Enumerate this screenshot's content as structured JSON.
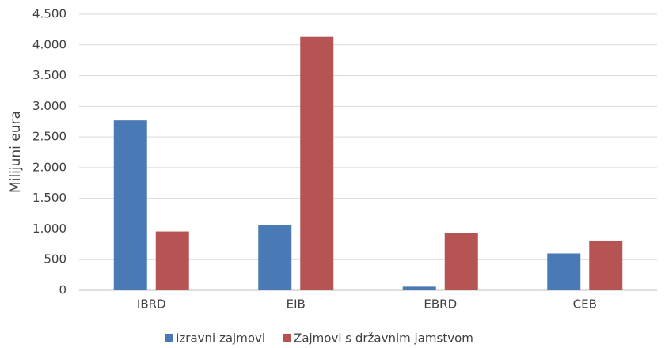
{
  "chart_data": {
    "type": "bar",
    "y_label": "Milijuni eura",
    "categories": [
      "IBRD",
      "EIB",
      "EBRD",
      "CEB"
    ],
    "series": [
      {
        "name": "Izravni zajmovi",
        "color": "#4a7ab5",
        "values": [
          2770,
          1070,
          60,
          600
        ]
      },
      {
        "name": "Zajmovi s državnim jamstvom",
        "color": "#b65454",
        "values": [
          960,
          4130,
          940,
          800
        ]
      }
    ],
    "ylim": [
      0,
      4500
    ],
    "yticks": [
      0,
      500,
      {
        "value": 1000,
        "label": "1.000"
      },
      {
        "value": 1500,
        "label": "1.500"
      },
      {
        "value": 2000,
        "label": "2.000"
      },
      {
        "value": 2500,
        "label": "2.500"
      },
      {
        "value": 3000,
        "label": "3.000"
      },
      {
        "value": 3500,
        "label": "3.500"
      },
      {
        "value": 4000,
        "label": "4.000"
      },
      {
        "value": 4500,
        "label": "4.500"
      }
    ],
    "grid": true,
    "legend": "bottom"
  }
}
